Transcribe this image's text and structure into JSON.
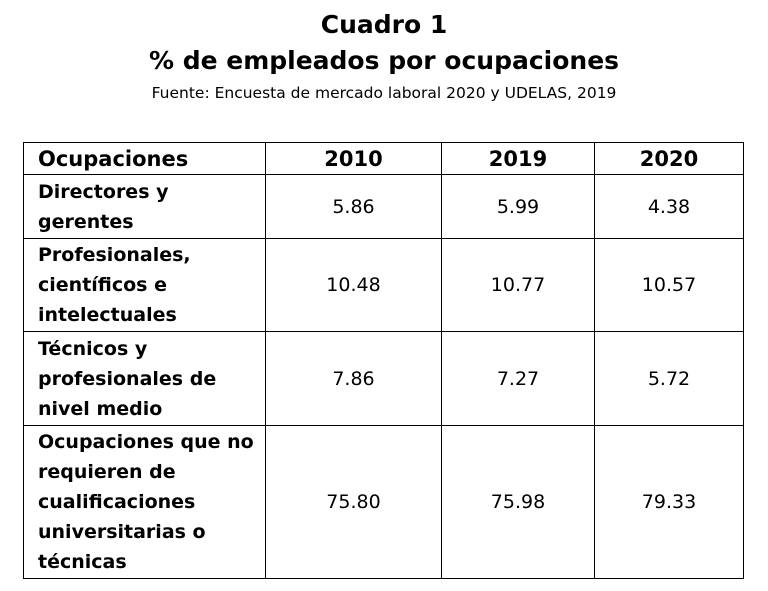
{
  "header": {
    "title_line1": "Cuadro 1",
    "title_line2": "% de empleados por ocupaciones",
    "source": "Fuente: Encuesta de mercado laboral 2020 y UDELAS, 2019"
  },
  "table": {
    "columns": [
      "Ocupaciones",
      "2010",
      "2019",
      "2020"
    ],
    "rows": [
      {
        "label": "Directores y gerentes",
        "values": [
          "5.86",
          "5.99",
          "4.38"
        ]
      },
      {
        "label": "Profesionales, científicos e intelectuales",
        "values": [
          "10.48",
          "10.77",
          "10.57"
        ]
      },
      {
        "label": "Técnicos y profesionales de nivel medio",
        "values": [
          "7.86",
          "7.27",
          "5.72"
        ]
      },
      {
        "label": "Ocupaciones que no requieren de cualificaciones universitarias o técnicas",
        "values": [
          "75.80",
          "75.98",
          "79.33"
        ]
      }
    ]
  }
}
